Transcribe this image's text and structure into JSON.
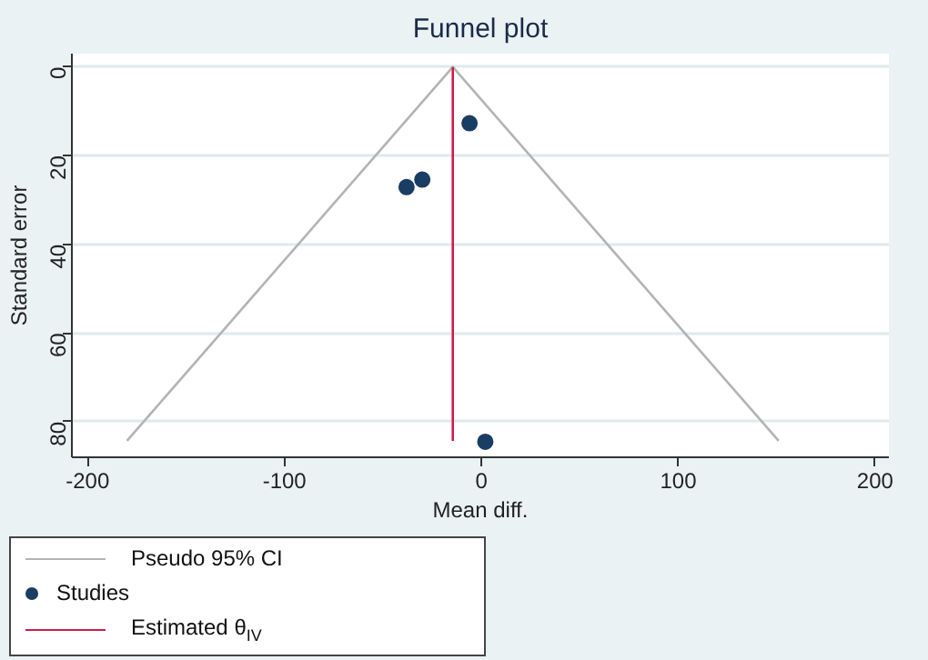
{
  "chart_data": {
    "type": "scatter",
    "title": "Funnel plot",
    "xlabel": "Mean diff.",
    "ylabel": "Standard error",
    "xlim": [
      -208,
      207
    ],
    "ylim": [
      88,
      -3
    ],
    "xticks": [
      -200,
      -100,
      0,
      100,
      200
    ],
    "yticks": [
      0,
      20,
      40,
      60,
      80
    ],
    "grid": "y",
    "legend": "bottom",
    "marker": "circle",
    "series": [
      {
        "name": "Pseudo 95% CI",
        "type": "line",
        "marker": "none",
        "color": "#b4b4b4",
        "x": [
          -180,
          -14.5,
          151
        ],
        "values": [
          84.3,
          0,
          84.3
        ]
      },
      {
        "name": "Studies",
        "color": "#1a3d63",
        "x": [
          -6,
          -30,
          -38,
          2
        ],
        "values": [
          12.7,
          25.4,
          27.1,
          84.5
        ]
      },
      {
        "name": "Estimated θ$_{IV}$",
        "type": "line",
        "marker": "none",
        "color": "#d01c4b",
        "x": [
          -14.5,
          -14.5
        ],
        "values": [
          0,
          84.3
        ]
      }
    ]
  }
}
